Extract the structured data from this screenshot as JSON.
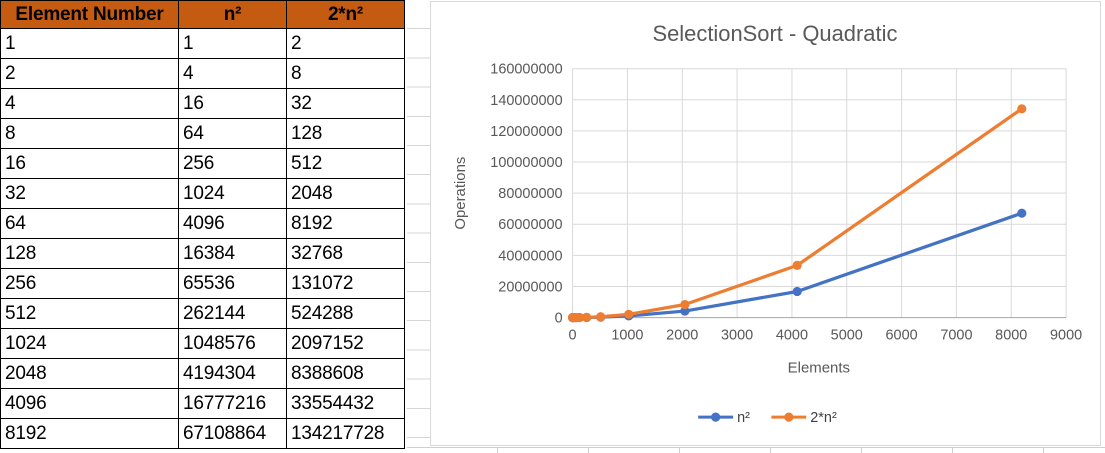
{
  "colors": {
    "series_blue": "#4472C4",
    "series_orange": "#ED7D31",
    "table_header_fill": "#C55A11",
    "grid_line": "#D9D9D9",
    "axis_line": "#A6A6A6",
    "chart_text": "#595959",
    "legend_text": "#404040"
  },
  "table": {
    "headers": [
      "Element Number",
      "n²",
      "2*n²"
    ],
    "rows": [
      [
        "1",
        "1",
        "2"
      ],
      [
        "2",
        "4",
        "8"
      ],
      [
        "4",
        "16",
        "32"
      ],
      [
        "8",
        "64",
        "128"
      ],
      [
        "16",
        "256",
        "512"
      ],
      [
        "32",
        "1024",
        "2048"
      ],
      [
        "64",
        "4096",
        "8192"
      ],
      [
        "128",
        "16384",
        "32768"
      ],
      [
        "256",
        "65536",
        "131072"
      ],
      [
        "512",
        "262144",
        "524288"
      ],
      [
        "1024",
        "1048576",
        "2097152"
      ],
      [
        "2048",
        "4194304",
        "8388608"
      ],
      [
        "4096",
        "16777216",
        "33554432"
      ],
      [
        "8192",
        "67108864",
        "134217728"
      ]
    ]
  },
  "chart_data": {
    "type": "line",
    "title": "SelectionSort - Quadratic",
    "x": [
      1,
      2,
      4,
      8,
      16,
      32,
      64,
      128,
      256,
      512,
      1024,
      2048,
      4096,
      8192
    ],
    "series": [
      {
        "name": "n²",
        "color": "#4472C4",
        "values": [
          1,
          4,
          16,
          64,
          256,
          1024,
          4096,
          16384,
          65536,
          262144,
          1048576,
          4194304,
          16777216,
          67108864
        ]
      },
      {
        "name": "2*n²",
        "color": "#ED7D31",
        "values": [
          2,
          8,
          32,
          128,
          512,
          2048,
          8192,
          32768,
          131072,
          524288,
          2097152,
          8388608,
          33554432,
          134217728
        ]
      }
    ],
    "x_axis": {
      "title": "Elements",
      "min": 0,
      "max": 9000,
      "ticks": [
        0,
        1000,
        2000,
        3000,
        4000,
        5000,
        6000,
        7000,
        8000,
        9000
      ]
    },
    "y_axis": {
      "title": "Operations",
      "min": 0,
      "max": 160000000,
      "ticks": [
        0,
        20000000,
        40000000,
        60000000,
        80000000,
        100000000,
        120000000,
        140000000,
        160000000
      ]
    },
    "grid": true,
    "legend_position": "bottom"
  }
}
